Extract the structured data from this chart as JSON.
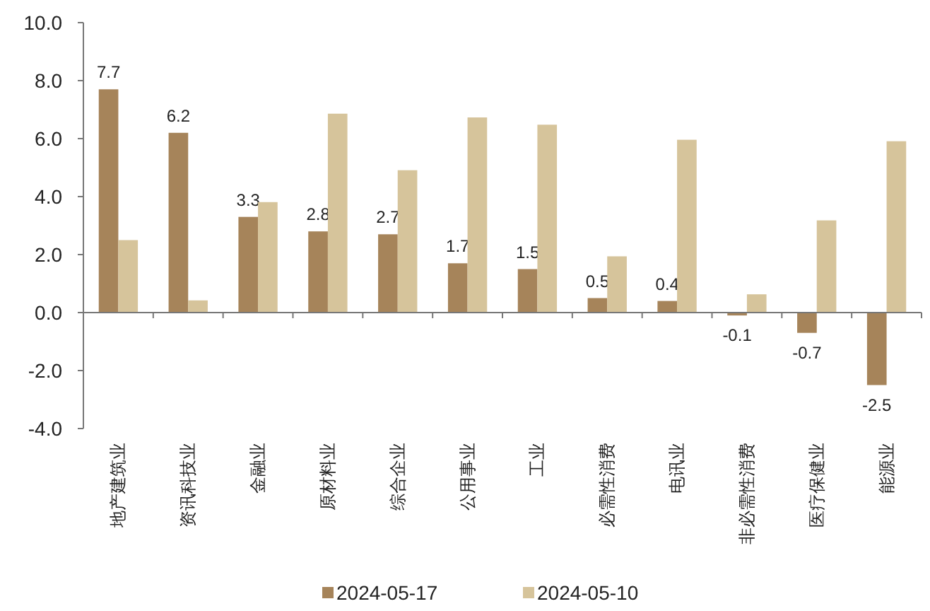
{
  "chart_data": {
    "type": "bar",
    "categories": [
      "地产建筑业",
      "资讯科技业",
      "金融业",
      "原材料业",
      "综合企业",
      "公用事业",
      "工业",
      "必需性消费",
      "电讯业",
      "非必需性消费",
      "医疗保健业",
      "能源业"
    ],
    "series": [
      {
        "name": "2024-05-17",
        "color": "#a6845a",
        "values": [
          7.7,
          6.2,
          3.3,
          2.8,
          2.7,
          1.7,
          1.5,
          0.5,
          0.4,
          -0.1,
          -0.7,
          -2.5
        ],
        "value_labels": [
          "7.7",
          "6.2",
          "3.3",
          "2.8",
          "2.7",
          "1.7",
          "1.5",
          "0.5",
          "0.4",
          "-0.1",
          "-0.7",
          "-2.5"
        ]
      },
      {
        "name": "2024-05-10",
        "color": "#d6c49b",
        "values": [
          2.5,
          0.42,
          3.81,
          6.86,
          4.91,
          6.73,
          6.48,
          1.94,
          5.96,
          0.63,
          3.18,
          5.91
        ]
      }
    ],
    "ylim": [
      -4,
      10
    ],
    "yticks": [
      {
        "value": -4,
        "label": "-4.0"
      },
      {
        "value": -2,
        "label": "-2.0"
      },
      {
        "value": 0,
        "label": "0.0"
      },
      {
        "value": 2,
        "label": "2.0"
      },
      {
        "value": 4,
        "label": "4.0"
      },
      {
        "value": 6,
        "label": "6.0"
      },
      {
        "value": 8,
        "label": "8.0"
      },
      {
        "value": 10,
        "label": "10.0"
      }
    ],
    "legend": "bottom"
  }
}
